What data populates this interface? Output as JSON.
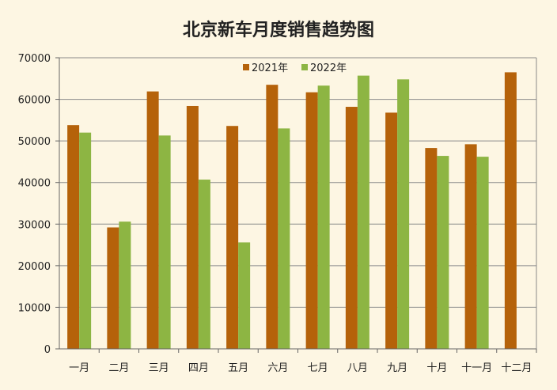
{
  "chart_data": {
    "type": "bar",
    "title": "北京新车月度销售趋势图",
    "xlabel": "",
    "ylabel": "",
    "categories": [
      "一月",
      "二月",
      "三月",
      "四月",
      "五月",
      "六月",
      "七月",
      "八月",
      "九月",
      "十月",
      "十一月",
      "十二月"
    ],
    "series": [
      {
        "name": "2021年",
        "color": "#b5620a",
        "values": [
          53800,
          29200,
          61900,
          58400,
          53600,
          63500,
          61700,
          58200,
          56800,
          48300,
          49200,
          66500
        ]
      },
      {
        "name": "2022年",
        "color": "#8db543",
        "values": [
          52000,
          30600,
          51300,
          40700,
          25600,
          53000,
          63300,
          65700,
          64800,
          46400,
          46200,
          null
        ]
      }
    ],
    "ylim": [
      0,
      70000
    ],
    "yticks": [
      "0",
      "10000",
      "20000",
      "30000",
      "40000",
      "50000",
      "60000",
      "70000"
    ],
    "grid": true,
    "legend_position": "top-center",
    "colors": {
      "background": "#fdf6e3",
      "grid": "#8a8a8a",
      "axis": "#666666"
    }
  }
}
